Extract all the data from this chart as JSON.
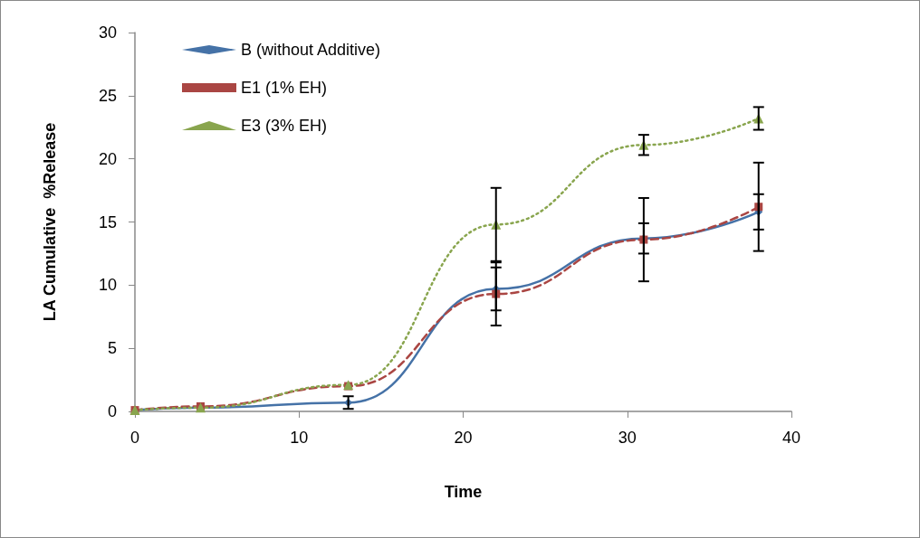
{
  "chart_data": {
    "type": "line",
    "xlabel": "Time",
    "ylabel": "LA Cumulative  %Release",
    "x": [
      0,
      4,
      13,
      22,
      31,
      38
    ],
    "series": [
      {
        "name": "B (without Additive)",
        "color": "#4572a7",
        "values": [
          0.1,
          0.3,
          0.7,
          9.7,
          13.7,
          15.8
        ],
        "errors": [
          null,
          null,
          0.5,
          1.7,
          1.2,
          1.4
        ],
        "marker": "diamond",
        "line_style": "solid"
      },
      {
        "name": "E1 (1% EH)",
        "color": "#aa4643",
        "values": [
          0.1,
          0.4,
          2.0,
          9.3,
          13.6,
          16.2
        ],
        "errors": [
          null,
          null,
          null,
          2.5,
          3.3,
          3.5
        ],
        "marker": "square",
        "line_style": "dashed"
      },
      {
        "name": "E3 (3% EH)",
        "color": "#89a54e",
        "values": [
          0.1,
          0.3,
          2.1,
          14.8,
          21.1,
          23.2
        ],
        "errors": [
          null,
          null,
          null,
          2.9,
          0.8,
          0.9
        ],
        "marker": "triangle",
        "line_style": "dotted"
      }
    ],
    "xlim": [
      0,
      40
    ],
    "xticks": [
      0,
      10,
      20,
      30,
      40
    ],
    "ylim": [
      0,
      30
    ],
    "yticks": [
      0,
      5,
      10,
      15,
      20,
      25,
      30
    ],
    "grid": false,
    "legend": "top left"
  }
}
